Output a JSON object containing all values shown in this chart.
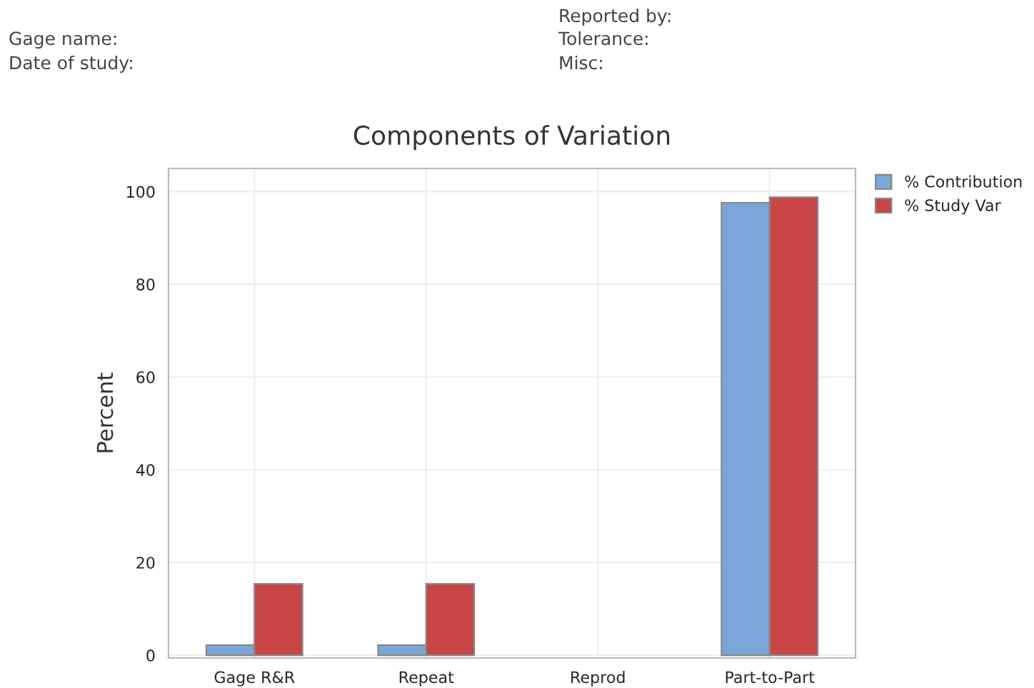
{
  "chart_data": {
    "type": "bar",
    "title": "Components of Variation",
    "ylabel": "Percent",
    "categories": [
      "Gage R&R",
      "Repeat",
      "Reprod",
      "Part-to-Part"
    ],
    "series": [
      {
        "name": "% Contribution",
        "color": "#7aa5d8",
        "values": [
          2.2,
          2.2,
          0,
          97.6
        ]
      },
      {
        "name": "% Study Var",
        "color": "#c94444",
        "values": [
          15.4,
          15.4,
          0,
          98.8
        ]
      }
    ],
    "ylim": [
      -0.6,
      105
    ],
    "yticks": [
      0,
      20,
      40,
      60,
      80,
      100
    ],
    "grid": true,
    "legend": "top right",
    "annotations": [
      "Gage name:",
      "Date of study:",
      "Reported by:",
      "Tolerance:",
      "Misc:"
    ]
  }
}
